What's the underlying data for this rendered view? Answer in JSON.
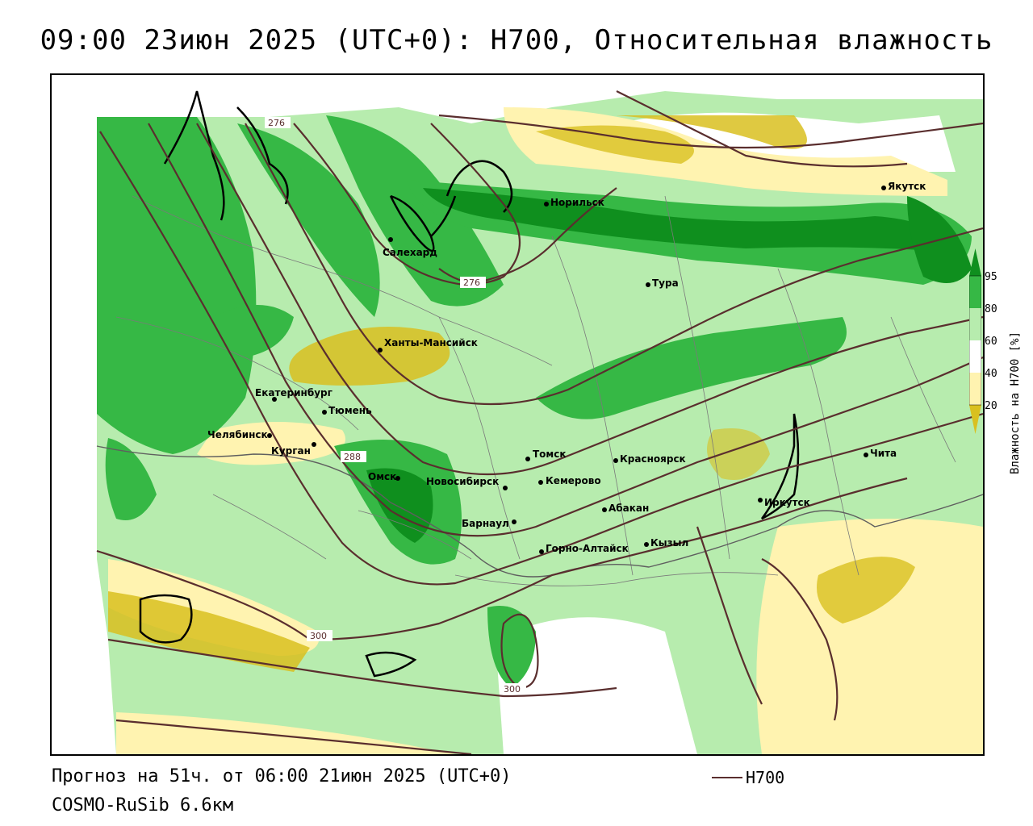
{
  "title": "09:00 23июн 2025 (UTC+0): H700, Относительная влажность",
  "footer": {
    "forecast": "Прогноз на 51ч. от 06:00 21июн 2025 (UTC+0)",
    "model": "COSMO-RuSib 6.6км",
    "legend_label": "H700"
  },
  "colorbar": {
    "title": "Влажность на H700 [%]",
    "ticks": [
      "95",
      "80",
      "60",
      "40",
      "20"
    ],
    "colors": {
      "c95": "#0f8f1e",
      "c80": "#36b845",
      "c60": "#b7ecae",
      "c40": "#ffffff",
      "c20": "#fff3b0",
      "c0": "#d9c020"
    }
  },
  "cities": [
    {
      "name": "Салехард"
    },
    {
      "name": "Норильск"
    },
    {
      "name": "Якутск"
    },
    {
      "name": "Тура"
    },
    {
      "name": "Ханты-Мансийск"
    },
    {
      "name": "Екатеринбург"
    },
    {
      "name": "Тюмень"
    },
    {
      "name": "Челябинск"
    },
    {
      "name": "Курган"
    },
    {
      "name": "Омск"
    },
    {
      "name": "Новосибирск"
    },
    {
      "name": "Томск"
    },
    {
      "name": "Кемерово"
    },
    {
      "name": "Красноярск"
    },
    {
      "name": "Абакан"
    },
    {
      "name": "Барнаул"
    },
    {
      "name": "Горно-Алтайск"
    },
    {
      "name": "Кызыл"
    },
    {
      "name": "Иркутск"
    },
    {
      "name": "Чита"
    }
  ],
  "isolines": {
    "labels": [
      "276",
      "276",
      "288",
      "300",
      "300"
    ]
  },
  "colors": {
    "isoline": "#5a2e2e"
  }
}
